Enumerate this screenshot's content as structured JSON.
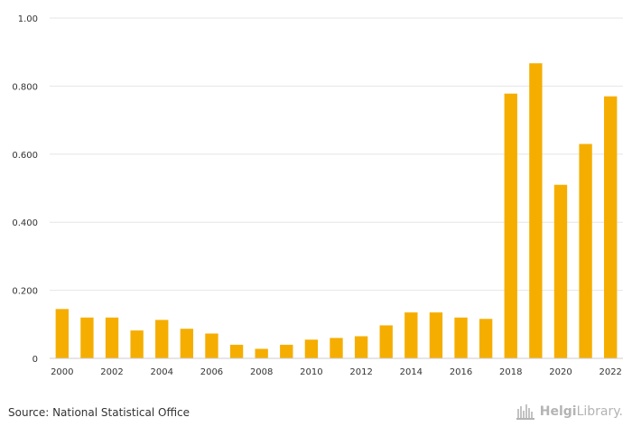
{
  "chart_data": {
    "type": "bar",
    "categories": [
      "2000",
      "2001",
      "2002",
      "2003",
      "2004",
      "2005",
      "2006",
      "2007",
      "2008",
      "2009",
      "2010",
      "2011",
      "2012",
      "2013",
      "2014",
      "2015",
      "2016",
      "2017",
      "2018",
      "2019",
      "2020",
      "2021",
      "2022"
    ],
    "x_tick_labels": [
      "2000",
      "2002",
      "2004",
      "2006",
      "2008",
      "2010",
      "2012",
      "2014",
      "2016",
      "2018",
      "2020",
      "2022"
    ],
    "values": [
      0.145,
      0.12,
      0.12,
      0.082,
      0.113,
      0.087,
      0.073,
      0.04,
      0.028,
      0.04,
      0.055,
      0.06,
      0.065,
      0.097,
      0.135,
      0.135,
      0.12,
      0.116,
      0.778,
      0.867,
      0.51,
      0.63,
      0.77
    ],
    "ylim": [
      0,
      1.0
    ],
    "y_ticks": [
      0,
      0.2,
      0.4,
      0.6,
      0.8,
      1.0
    ],
    "y_tick_labels": [
      "0",
      "0.200",
      "0.400",
      "0.600",
      "0.800",
      "1.00"
    ],
    "title": "",
    "xlabel": "",
    "ylabel": "",
    "grid": true,
    "bar_color": "#f5ae00"
  },
  "footer": {
    "source": "Source: National Statistical Office",
    "logo_bold": "Helgi",
    "logo_light": "Library."
  }
}
